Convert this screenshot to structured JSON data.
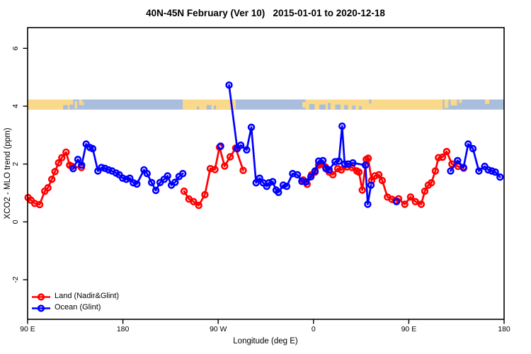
{
  "header": {
    "title": "40N-45N February (Ver 10)   2015-01-01 to 2020-12-18"
  },
  "colors": {
    "land_series": "#FF0000",
    "ocean_series": "#0000FF",
    "band_land": "#FBD98B",
    "band_ocean": "#A9BDDC",
    "axis": "#000000",
    "background": "#FFFFFF"
  },
  "chart_data": {
    "type": "line",
    "title": "40N-45N February (Ver 10)   2015-01-01 to 2020-12-18",
    "xlabel": "Longitude (deg E)",
    "ylabel": "XCO2 - MLO trend (ppm)",
    "xlim": [
      90,
      540
    ],
    "ylim": [
      -3.4,
      6.7
    ],
    "grid": false,
    "marker": "open-circle",
    "legend_position": "bottom-left",
    "x_ticks": [
      {
        "value": 90,
        "label": "90 E"
      },
      {
        "value": 180,
        "label": "180"
      },
      {
        "value": 270,
        "label": "90 W"
      },
      {
        "value": 360,
        "label": "0"
      },
      {
        "value": 450,
        "label": "90 E"
      },
      {
        "value": 540,
        "label": "180"
      }
    ],
    "y_ticks": [
      {
        "value": -2,
        "label": "-2"
      },
      {
        "value": 0,
        "label": "0"
      },
      {
        "value": 2,
        "label": "2"
      },
      {
        "value": 4,
        "label": "4"
      },
      {
        "value": 6,
        "label": "6"
      }
    ],
    "series": [
      {
        "name": "Land (Nadir&Glint)",
        "color_key": "land_series",
        "segments": [
          [
            [
              90.5,
              0.84
            ],
            [
              93.2,
              0.75
            ],
            [
              96.7,
              0.64
            ],
            [
              101.4,
              0.6
            ],
            [
              106.2,
              1.06
            ],
            [
              109.2,
              1.18
            ],
            [
              112.9,
              1.47
            ],
            [
              115.9,
              1.74
            ],
            [
              119.2,
              2.04
            ],
            [
              122.3,
              2.22
            ],
            [
              126.3,
              2.41
            ],
            [
              129.7,
              1.96
            ],
            [
              131.9,
              1.92
            ],
            [
              140.8,
              1.88
            ]
          ],
          [
            [
              237.8,
              1.06
            ],
            [
              242.3,
              0.79
            ],
            [
              246.7,
              0.7
            ],
            [
              251.6,
              0.57
            ],
            [
              257.4,
              0.94
            ],
            [
              262.5,
              1.84
            ],
            [
              266.9,
              1.81
            ],
            [
              271.2,
              2.58
            ],
            [
              276.1,
              1.93
            ],
            [
              281.3,
              2.25
            ],
            [
              286.5,
              2.55
            ],
            [
              293.6,
              1.78
            ]
          ],
          [
            [
              350.3,
              1.45
            ],
            [
              354.0,
              1.3
            ],
            [
              358.1,
              1.63
            ],
            [
              361.5,
              1.72
            ],
            [
              364.8,
              1.96
            ],
            [
              367.6,
              2.0
            ],
            [
              371.2,
              1.9
            ],
            [
              374.8,
              1.72
            ],
            [
              378.3,
              1.63
            ],
            [
              382.9,
              1.84
            ],
            [
              386.3,
              1.8
            ],
            [
              391.6,
              1.9
            ],
            [
              396.3,
              1.88
            ],
            [
              400.9,
              1.76
            ],
            [
              402.9,
              1.72
            ],
            [
              406.1,
              1.1
            ],
            [
              409.8,
              2.16
            ],
            [
              411.7,
              2.2
            ],
            [
              414.9,
              1.43
            ],
            [
              417.9,
              1.59
            ],
            [
              421.7,
              1.63
            ],
            [
              424.9,
              1.43
            ],
            [
              429.9,
              0.86
            ],
            [
              434.0,
              0.78
            ],
            [
              437.3,
              0.74
            ],
            [
              440.4,
              0.8
            ],
            [
              446.2,
              0.61
            ],
            [
              451.7,
              0.86
            ],
            [
              456.2,
              0.7
            ],
            [
              461.7,
              0.61
            ],
            [
              465.1,
              1.06
            ],
            [
              468.4,
              1.27
            ],
            [
              471.3,
              1.35
            ],
            [
              475.1,
              1.76
            ],
            [
              478.0,
              2.22
            ],
            [
              481.8,
              2.24
            ],
            [
              485.8,
              2.43
            ],
            [
              490.7,
              2.0
            ],
            [
              496.5,
              1.92
            ],
            [
              501.8,
              1.86
            ]
          ]
        ]
      },
      {
        "name": "Ocean (Glint)",
        "color_key": "ocean_series",
        "segments": [
          [
            [
              133.0,
              1.84
            ],
            [
              137.5,
              2.16
            ],
            [
              141.0,
              1.96
            ],
            [
              145.3,
              2.69
            ],
            [
              149.0,
              2.57
            ],
            [
              151.5,
              2.53
            ],
            [
              156.4,
              1.76
            ],
            [
              159.8,
              1.88
            ],
            [
              163.1,
              1.85
            ],
            [
              166.4,
              1.8
            ],
            [
              169.8,
              1.76
            ],
            [
              173.6,
              1.69
            ],
            [
              176.5,
              1.63
            ],
            [
              179.8,
              1.51
            ],
            [
              183.2,
              1.47
            ],
            [
              186.5,
              1.51
            ],
            [
              189.8,
              1.35
            ],
            [
              193.2,
              1.31
            ],
            [
              199.9,
              1.8
            ],
            [
              202.9,
              1.67
            ],
            [
              207.1,
              1.36
            ],
            [
              211.1,
              1.09
            ],
            [
              215.1,
              1.36
            ],
            [
              218.9,
              1.47
            ],
            [
              222.2,
              1.59
            ],
            [
              225.8,
              1.27
            ],
            [
              229.3,
              1.37
            ],
            [
              233.0,
              1.57
            ],
            [
              236.6,
              1.67
            ]
          ],
          [
            [
              272.3,
              2.62
            ]
          ],
          [
            [
              280.2,
              4.73
            ],
            [
              288.0,
              2.53
            ],
            [
              291.3,
              2.65
            ],
            [
              296.9,
              2.49
            ],
            [
              301.3,
              3.27
            ],
            [
              305.8,
              1.35
            ],
            [
              309.1,
              1.51
            ],
            [
              312.5,
              1.35
            ],
            [
              315.8,
              1.23
            ],
            [
              318.0,
              1.35
            ],
            [
              321.4,
              1.39
            ],
            [
              324.7,
              1.1
            ],
            [
              326.9,
              1.02
            ],
            [
              331.4,
              1.27
            ],
            [
              334.7,
              1.23
            ],
            [
              340.3,
              1.67
            ],
            [
              344.8,
              1.63
            ],
            [
              349.0,
              1.4
            ],
            [
              353.0,
              1.38
            ],
            [
              357.5,
              1.56
            ],
            [
              361.5,
              1.76
            ],
            [
              364.9,
              2.1
            ],
            [
              368.9,
              2.12
            ],
            [
              371.8,
              1.84
            ],
            [
              374.8,
              1.8
            ],
            [
              380.4,
              2.08
            ],
            [
              384.0,
              2.1
            ],
            [
              387.0,
              3.31
            ],
            [
              389.4,
              2.0
            ],
            [
              392.8,
              2.0
            ],
            [
              397.2,
              2.04
            ],
            [
              409.0,
              1.96
            ],
            [
              411.2,
              0.61
            ],
            [
              414.3,
              1.27
            ]
          ],
          [
            [
              438.4,
              0.7
            ]
          ],
          [
            [
              489.5,
              1.76
            ],
            [
              496.1,
              2.12
            ],
            [
              501.7,
              1.88
            ],
            [
              506.1,
              2.69
            ],
            [
              510.6,
              2.53
            ],
            [
              516.2,
              1.76
            ],
            [
              521.7,
              1.92
            ],
            [
              525.0,
              1.8
            ],
            [
              528.4,
              1.76
            ],
            [
              531.7,
              1.72
            ],
            [
              536.2,
              1.55
            ]
          ]
        ]
      }
    ],
    "land_ocean_band": {
      "description": "land/ocean strip centered at y=4",
      "value_center": 4.05,
      "base": "ocean",
      "segments": [
        {
          "from": 90,
          "to": 133,
          "type": "land",
          "top": 0,
          "bottom": 1
        },
        {
          "from": 134.6,
          "to": 136.8,
          "type": "land",
          "top": 0.15,
          "bottom": 0.9
        },
        {
          "from": 138.6,
          "to": 141.3,
          "type": "land",
          "top": 0,
          "bottom": 0.55
        },
        {
          "from": 141.8,
          "to": 143.2,
          "type": "land",
          "top": 0.2,
          "bottom": 0.6
        },
        {
          "from": 236.5,
          "to": 286.5,
          "type": "land",
          "top": 0,
          "bottom": 1
        },
        {
          "from": 349.5,
          "to": 352.5,
          "type": "land",
          "top": 0.25,
          "bottom": 0.8
        },
        {
          "from": 352.5,
          "to": 482,
          "type": "land",
          "top": 0,
          "bottom": 1
        },
        {
          "from": 483.5,
          "to": 487.5,
          "type": "land",
          "top": 0,
          "bottom": 0.85
        },
        {
          "from": 489.5,
          "to": 495.5,
          "type": "land",
          "top": 0,
          "bottom": 0.6
        },
        {
          "from": 497.5,
          "to": 500,
          "type": "land",
          "top": 0,
          "bottom": 0.35
        },
        {
          "from": 522,
          "to": 526,
          "type": "land",
          "top": 0,
          "bottom": 0.45
        },
        {
          "from": 123.5,
          "to": 128,
          "type": "ocean",
          "top": 0.55,
          "bottom": 1
        },
        {
          "from": 129.5,
          "to": 133,
          "type": "ocean",
          "top": 0.5,
          "bottom": 1
        },
        {
          "from": 250,
          "to": 252,
          "type": "ocean",
          "top": 0.7,
          "bottom": 1
        },
        {
          "from": 259,
          "to": 263.5,
          "type": "ocean",
          "top": 0.55,
          "bottom": 1
        },
        {
          "from": 266,
          "to": 268,
          "type": "ocean",
          "top": 0.6,
          "bottom": 1
        },
        {
          "from": 356,
          "to": 361,
          "type": "ocean",
          "top": 0.45,
          "bottom": 1
        },
        {
          "from": 365.5,
          "to": 371.5,
          "type": "ocean",
          "top": 0.5,
          "bottom": 1
        },
        {
          "from": 373.5,
          "to": 376,
          "type": "ocean",
          "top": 0.35,
          "bottom": 1
        },
        {
          "from": 380.5,
          "to": 385.5,
          "type": "ocean",
          "top": 0.5,
          "bottom": 1
        },
        {
          "from": 389,
          "to": 392.5,
          "type": "ocean",
          "top": 0.55,
          "bottom": 1
        },
        {
          "from": 396.5,
          "to": 399.5,
          "type": "ocean",
          "top": 0.6,
          "bottom": 1
        },
        {
          "from": 403,
          "to": 405.5,
          "type": "ocean",
          "top": 0.65,
          "bottom": 1
        },
        {
          "from": 412.5,
          "to": 414.5,
          "type": "ocean",
          "top": 0,
          "bottom": 0.4
        }
      ]
    },
    "legend": {
      "entries": [
        "Land (Nadir&Glint)",
        "Ocean (Glint)"
      ]
    }
  }
}
